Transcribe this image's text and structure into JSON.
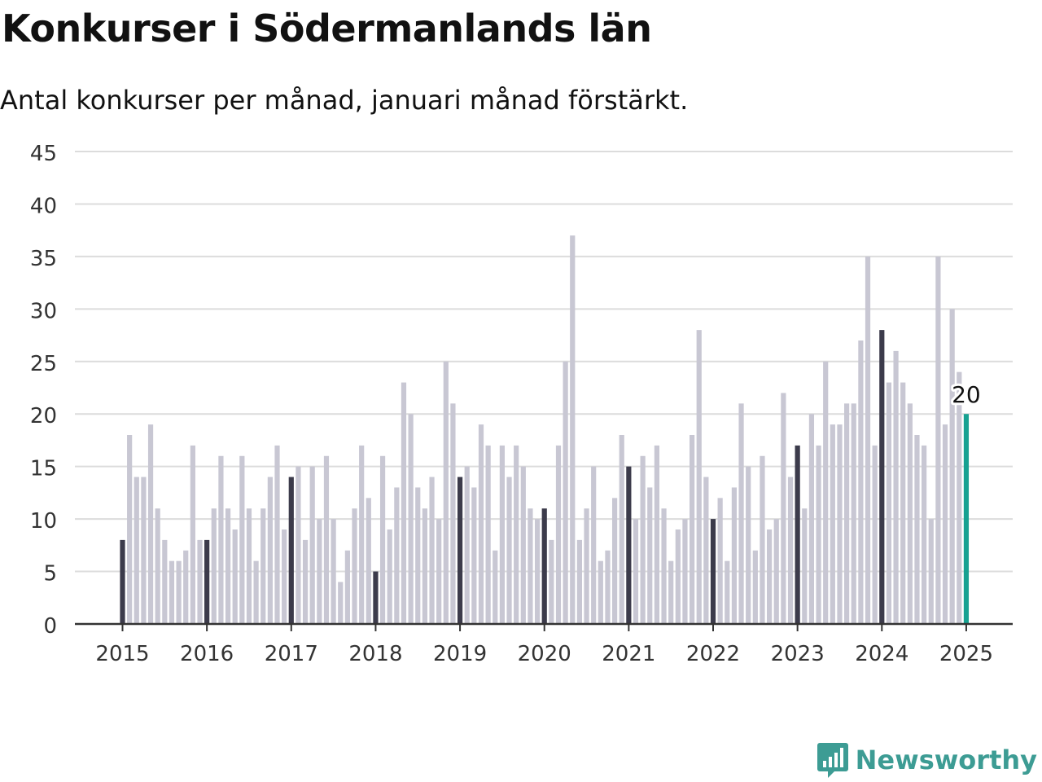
{
  "title": "Konkurser i Södermanlands län",
  "subtitle": "Antal konkurser per månad, januari månad förstärkt.",
  "brand": {
    "name": "Newsworthy",
    "icon": "newsworthy-logo-icon"
  },
  "colors": {
    "bar": "#c8c7d3",
    "january": "#3c3b4b",
    "latest": "#17a191",
    "grid": "#dcdcdc",
    "axis": "#333333"
  },
  "chart_data": {
    "type": "bar",
    "start": "2015-01",
    "values": [
      8,
      18,
      14,
      14,
      19,
      11,
      8,
      6,
      6,
      7,
      17,
      8,
      8,
      11,
      16,
      11,
      9,
      16,
      11,
      6,
      11,
      14,
      17,
      9,
      14,
      15,
      8,
      15,
      10,
      16,
      10,
      4,
      7,
      11,
      17,
      12,
      5,
      16,
      9,
      13,
      23,
      20,
      13,
      11,
      14,
      10,
      25,
      21,
      14,
      15,
      13,
      19,
      17,
      7,
      17,
      14,
      17,
      15,
      11,
      10,
      11,
      8,
      17,
      25,
      37,
      8,
      11,
      15,
      6,
      7,
      12,
      18,
      15,
      10,
      16,
      13,
      17,
      11,
      6,
      9,
      10,
      18,
      28,
      14,
      10,
      12,
      6,
      13,
      21,
      15,
      7,
      16,
      9,
      10,
      22,
      14,
      17,
      11,
      20,
      17,
      25,
      19,
      19,
      21,
      21,
      27,
      35,
      17,
      28,
      23,
      26,
      23,
      21,
      18,
      17,
      10,
      35,
      19,
      30,
      24,
      20
    ],
    "x_ticks": [
      "2015",
      "2016",
      "2017",
      "2018",
      "2019",
      "2020",
      "2021",
      "2022",
      "2023",
      "2024",
      "2025"
    ],
    "y_ticks": [
      "0",
      "5",
      "10",
      "15",
      "20",
      "25",
      "30",
      "35",
      "40",
      "45"
    ],
    "ylim": [
      0,
      45
    ],
    "grid": true,
    "highlight": "january",
    "last_label": "20"
  }
}
